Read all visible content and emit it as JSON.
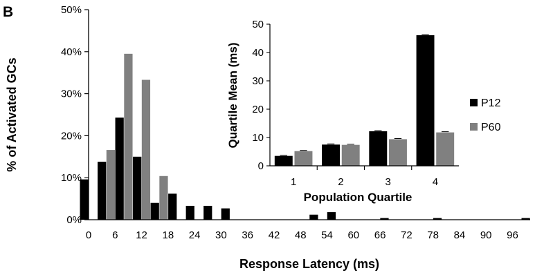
{
  "panel_label": "B",
  "colors": {
    "P12": "#000000",
    "P60": "#808080"
  },
  "chart_data": [
    {
      "type": "bar",
      "xlabel": "Response Latency (ms)",
      "ylabel": "% of Activated GCs",
      "ylim": [
        0,
        50
      ],
      "yticks": [
        "0%",
        "10%",
        "20%",
        "30%",
        "40%",
        "50%"
      ],
      "xticks": [
        "0",
        "6",
        "12",
        "18",
        "24",
        "30",
        "36",
        "42",
        "48",
        "54",
        "60",
        "66",
        "72",
        "78",
        "84",
        "90",
        "96"
      ],
      "bin_ms": 2,
      "x_range": [
        0,
        100
      ],
      "series": [
        {
          "key": "P12",
          "values": [
            0,
            9.6,
            0,
            13.8,
            0,
            24.3,
            0,
            15.0,
            0,
            4.0,
            0,
            6.2,
            0,
            3.3,
            0,
            3.3,
            0,
            2.7,
            0,
            0,
            0,
            0,
            0,
            0,
            0,
            0,
            0,
            1.2,
            0,
            1.8,
            0,
            0,
            0,
            0,
            0,
            0.4,
            0,
            0,
            0,
            0,
            0,
            0.4,
            0,
            0,
            0,
            0,
            0,
            0,
            0,
            0,
            0,
            0.4,
            0,
            1.0,
            0,
            0.4,
            0,
            0,
            0,
            0,
            0,
            0.4,
            0,
            0.4,
            0,
            0.4,
            0,
            0,
            0,
            0,
            0,
            0,
            0,
            1.8,
            0,
            1.2,
            0,
            1.2,
            0,
            0,
            0,
            0,
            0,
            0,
            0,
            0,
            0,
            0,
            0,
            0
          ]
        },
        {
          "key": "P60",
          "values": [
            0,
            0,
            0,
            16.6,
            0,
            39.5,
            0,
            33.3,
            0,
            10.4
          ]
        }
      ]
    },
    {
      "type": "bar",
      "xlabel": "Population Quartile",
      "ylabel": "Quartile Mean (ms)",
      "ylim": [
        0,
        50
      ],
      "yticks": [
        "0",
        "10",
        "20",
        "30",
        "40",
        "50"
      ],
      "categories": [
        "1",
        "2",
        "3",
        "4"
      ],
      "series": [
        {
          "name": "P12",
          "values": [
            3.5,
            7.5,
            12.2,
            46.1
          ]
        },
        {
          "name": "P60",
          "values": [
            5.2,
            7.4,
            9.4,
            11.8
          ]
        }
      ]
    }
  ]
}
